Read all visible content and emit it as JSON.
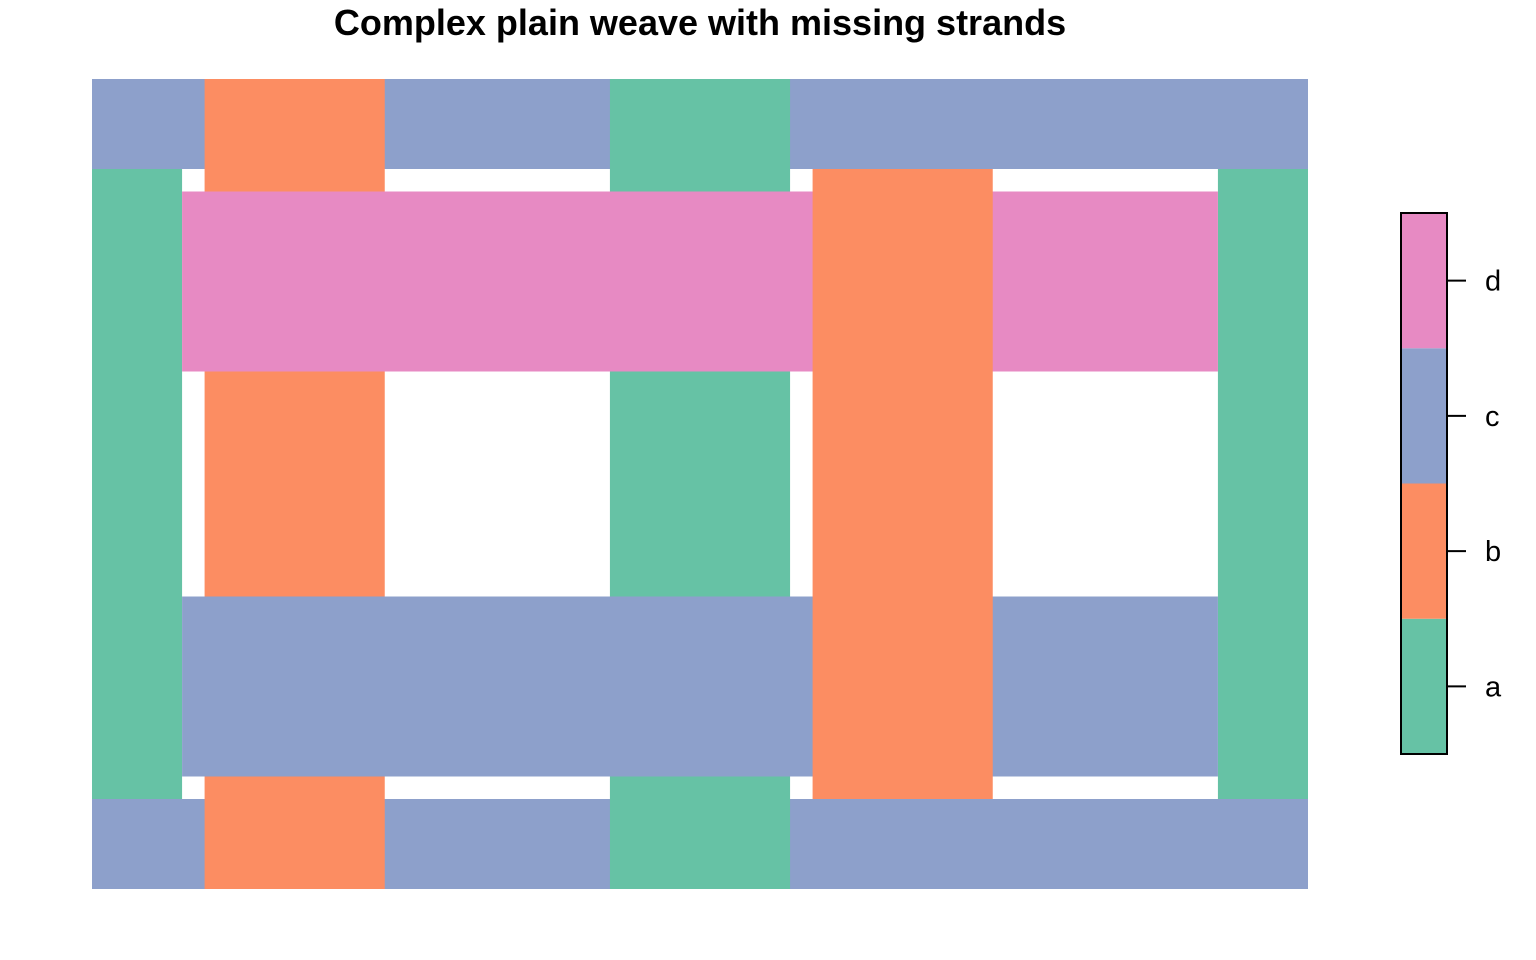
{
  "chart_data": {
    "type": "heatmap",
    "title": "Complex plain weave with missing strands",
    "xlabel": "",
    "ylabel": "",
    "xlim": [
      0,
      27
    ],
    "ylim": [
      0,
      18
    ],
    "grid": false,
    "legend": {
      "placement": "right",
      "ticks": [
        "a",
        "b",
        "c",
        "d"
      ],
      "colors": [
        "#66C2A5",
        "#FC8D62",
        "#8DA0CB",
        "#E78AC3"
      ]
    },
    "horizontal_strands": [
      {
        "category": "c",
        "x": [
          0,
          27
        ],
        "y": [
          0,
          2
        ]
      },
      {
        "category": "c",
        "x": [
          2,
          25
        ],
        "y": [
          2.5,
          6.5
        ]
      },
      {
        "category": "d",
        "x": [
          2,
          25
        ],
        "y": [
          11.5,
          15.5
        ]
      },
      {
        "category": "c",
        "x": [
          0,
          27
        ],
        "y": [
          16,
          18
        ]
      }
    ],
    "vertical_strands": [
      {
        "category": "a",
        "x": [
          0,
          2
        ],
        "y": [
          2,
          16
        ]
      },
      {
        "category": "b",
        "x": [
          2.5,
          6.5
        ],
        "y": [
          0,
          18
        ]
      },
      {
        "category": "a",
        "x": [
          11.5,
          15.5
        ],
        "y": [
          0,
          18
        ]
      },
      {
        "category": "b",
        "x": [
          16,
          20
        ],
        "y": [
          2,
          16
        ]
      },
      {
        "category": "a",
        "x": [
          25,
          27
        ],
        "y": [
          2,
          16
        ]
      }
    ],
    "draw_order": [
      {
        "kind": "h",
        "index": 0
      },
      {
        "kind": "h",
        "index": 3
      },
      {
        "kind": "v",
        "index": 1
      },
      {
        "kind": "v",
        "index": 2
      },
      {
        "kind": "v",
        "index": 0
      },
      {
        "kind": "v",
        "index": 4
      },
      {
        "kind": "h",
        "index": 1
      },
      {
        "kind": "h",
        "index": 2
      },
      {
        "kind": "v",
        "index": 3
      }
    ]
  }
}
